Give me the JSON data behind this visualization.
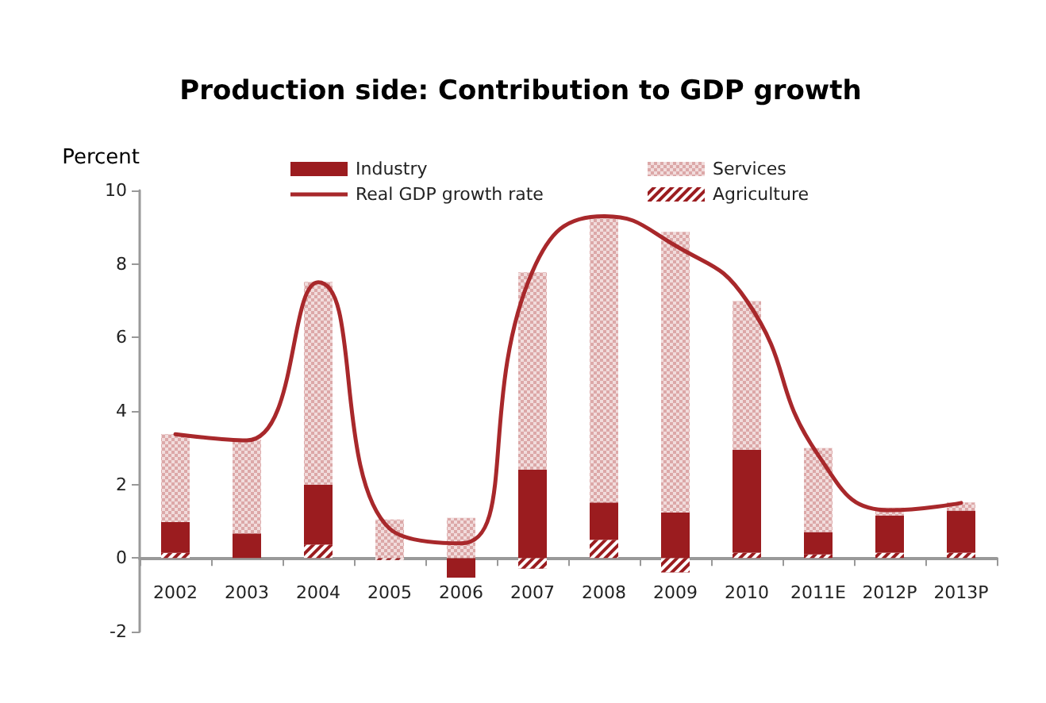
{
  "chart_data": {
    "type": "bar",
    "title": "Production side: Contribution to GDP growth",
    "ylabel": "Percent",
    "categories": [
      "2002",
      "2003",
      "2004",
      "2005",
      "2006",
      "2007",
      "2008",
      "2009",
      "2010",
      "2011E",
      "2012P",
      "2013P"
    ],
    "stacked": true,
    "ylim": [
      -2,
      10
    ],
    "yticks": [
      -2,
      0,
      2,
      4,
      6,
      8,
      10
    ],
    "legend": "top",
    "marker": "none",
    "line_style": "solid",
    "series": [
      {
        "name": "Agriculture",
        "color": "#9b1c1f",
        "values": [
          0.14,
          0,
          0.37,
          -0.05,
          0,
          -0.29,
          0.5,
          -0.39,
          0.15,
          0.1,
          0.15,
          0.15
        ]
      },
      {
        "name": "Industry",
        "color": "#9b1c1f",
        "values": [
          0.84,
          0.67,
          1.63,
          0,
          -0.53,
          2.41,
          1.01,
          1.24,
          2.8,
          0.61,
          1.01,
          1.14
        ]
      },
      {
        "name": "Services",
        "color": "#dca8a8",
        "values": [
          2.39,
          2.55,
          5.51,
          1.05,
          1.09,
          5.36,
          7.73,
          7.63,
          4.04,
          2.28,
          0.21,
          0.22
        ]
      },
      {
        "name": "Real GDP growth rate",
        "type": "line",
        "color": "#a8282b",
        "values": [
          3.37,
          3.2,
          7.5,
          0.8,
          0.4,
          7.8,
          9.3,
          8.5,
          7.0,
          2.8,
          1.3,
          1.5
        ]
      }
    ]
  }
}
